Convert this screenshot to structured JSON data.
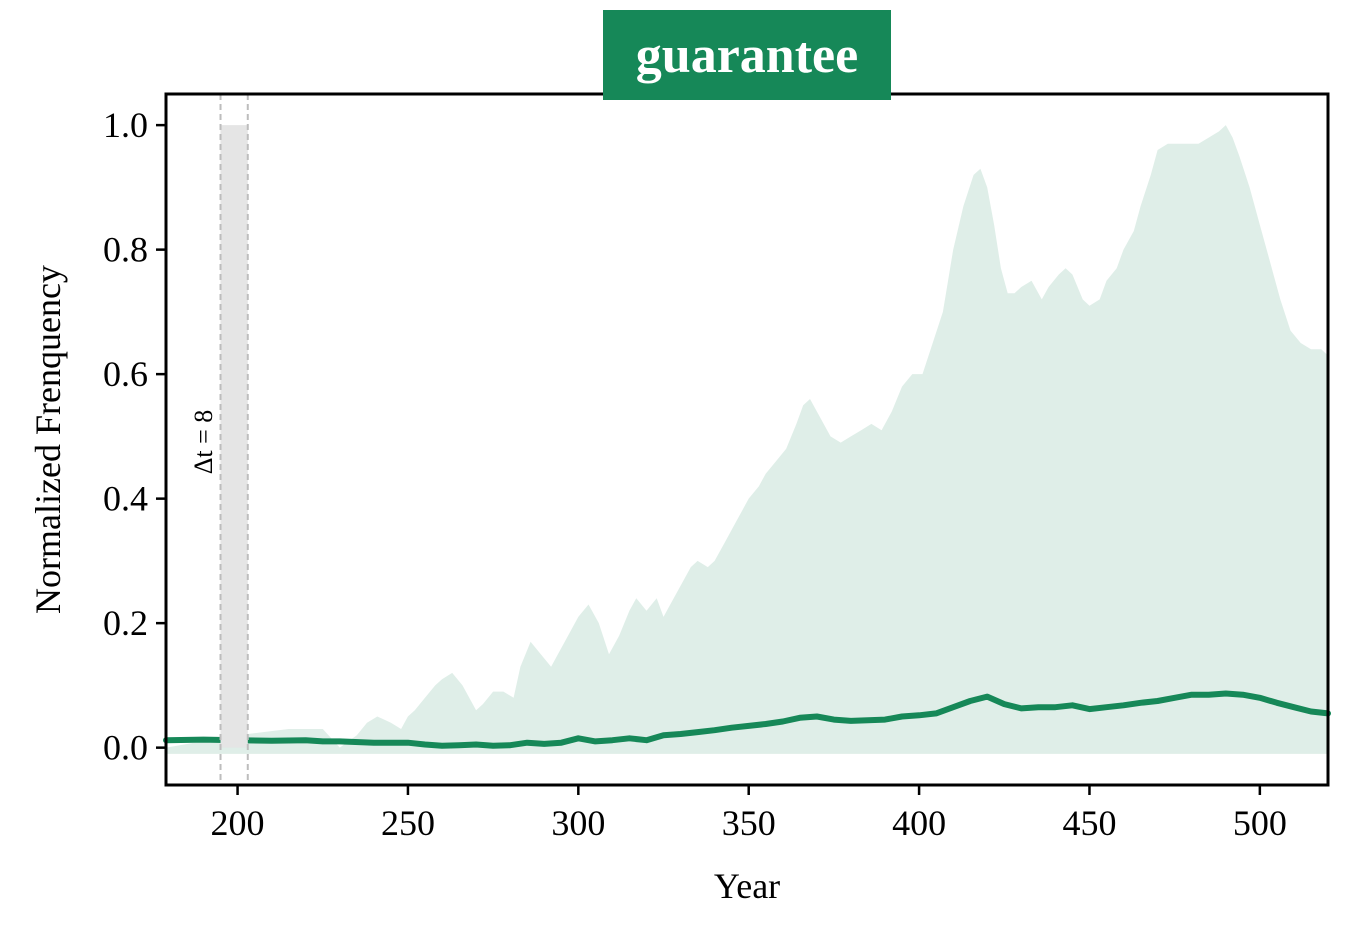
{
  "colors": {
    "accent": "#168858",
    "band_fill": "#dfeee8",
    "window_fill": "#e5e5e5",
    "window_line": "#bdbdbd"
  },
  "chart_data": {
    "type": "area",
    "title": "guarantee",
    "xlabel": "Year",
    "ylabel": "Normalized Frenquency",
    "xlim": [
      179,
      520
    ],
    "ylim": [
      -0.06,
      1.05
    ],
    "xticks": [
      200,
      250,
      300,
      350,
      400,
      450,
      500
    ],
    "yticks": [
      0.0,
      0.2,
      0.4,
      0.6,
      0.8,
      1.0
    ],
    "grid": false,
    "legend": "none",
    "window": {
      "start": 195,
      "end": 203,
      "height": 1.0,
      "label": "Δt = 8"
    },
    "series": [
      {
        "role": "band",
        "lower": -0.01,
        "x": [
          179,
          200,
          215,
          220,
          225,
          230,
          235,
          238,
          241,
          245,
          248,
          250,
          252,
          255,
          258,
          260,
          263,
          266,
          270,
          272,
          275,
          278,
          281,
          283,
          286,
          289,
          292,
          294,
          297,
          300,
          303,
          306,
          309,
          312,
          315,
          317,
          320,
          323,
          325,
          328,
          330,
          333,
          335,
          338,
          340,
          343,
          346,
          348,
          350,
          353,
          355,
          358,
          361,
          364,
          366,
          368,
          371,
          374,
          377,
          380,
          383,
          386,
          389,
          392,
          395,
          398,
          401,
          404,
          407,
          410,
          413,
          416,
          418,
          420,
          422,
          424,
          426,
          428,
          430,
          433,
          436,
          438,
          441,
          443,
          445,
          448,
          450,
          453,
          455,
          458,
          460,
          463,
          465,
          468,
          470,
          473,
          476,
          479,
          482,
          485,
          488,
          490,
          492,
          494,
          497,
          500,
          503,
          506,
          509,
          512,
          515,
          518,
          520
        ],
        "upper": [
          0.0,
          0.02,
          0.03,
          0.03,
          0.03,
          0.0,
          0.02,
          0.04,
          0.05,
          0.04,
          0.03,
          0.05,
          0.06,
          0.08,
          0.1,
          0.11,
          0.12,
          0.1,
          0.06,
          0.07,
          0.09,
          0.09,
          0.08,
          0.13,
          0.17,
          0.15,
          0.13,
          0.15,
          0.18,
          0.21,
          0.23,
          0.2,
          0.15,
          0.18,
          0.22,
          0.24,
          0.22,
          0.24,
          0.21,
          0.24,
          0.26,
          0.29,
          0.3,
          0.29,
          0.3,
          0.33,
          0.36,
          0.38,
          0.4,
          0.42,
          0.44,
          0.46,
          0.48,
          0.52,
          0.55,
          0.56,
          0.53,
          0.5,
          0.49,
          0.5,
          0.51,
          0.52,
          0.51,
          0.54,
          0.58,
          0.6,
          0.6,
          0.65,
          0.7,
          0.8,
          0.87,
          0.92,
          0.93,
          0.9,
          0.84,
          0.77,
          0.73,
          0.73,
          0.74,
          0.75,
          0.72,
          0.74,
          0.76,
          0.77,
          0.76,
          0.72,
          0.71,
          0.72,
          0.75,
          0.77,
          0.8,
          0.83,
          0.87,
          0.92,
          0.96,
          0.97,
          0.97,
          0.97,
          0.97,
          0.98,
          0.99,
          1.0,
          0.98,
          0.95,
          0.9,
          0.84,
          0.78,
          0.72,
          0.67,
          0.65,
          0.64,
          0.64,
          0.63
        ]
      },
      {
        "role": "line",
        "x": [
          179,
          190,
          200,
          210,
          220,
          225,
          230,
          240,
          250,
          255,
          260,
          265,
          270,
          275,
          280,
          285,
          290,
          295,
          300,
          305,
          310,
          315,
          320,
          325,
          330,
          335,
          340,
          345,
          350,
          355,
          360,
          365,
          370,
          375,
          380,
          385,
          390,
          395,
          400,
          405,
          410,
          415,
          420,
          425,
          430,
          435,
          440,
          445,
          450,
          455,
          460,
          465,
          470,
          475,
          480,
          485,
          490,
          495,
          500,
          505,
          510,
          515,
          520
        ],
        "y": [
          0.012,
          0.013,
          0.012,
          0.011,
          0.012,
          0.01,
          0.01,
          0.008,
          0.008,
          0.005,
          0.003,
          0.004,
          0.005,
          0.003,
          0.004,
          0.008,
          0.006,
          0.008,
          0.015,
          0.01,
          0.012,
          0.015,
          0.012,
          0.02,
          0.022,
          0.025,
          0.028,
          0.032,
          0.035,
          0.038,
          0.042,
          0.048,
          0.05,
          0.045,
          0.043,
          0.044,
          0.045,
          0.05,
          0.052,
          0.055,
          0.065,
          0.075,
          0.082,
          0.07,
          0.063,
          0.065,
          0.065,
          0.068,
          0.062,
          0.065,
          0.068,
          0.072,
          0.075,
          0.08,
          0.085,
          0.085,
          0.087,
          0.085,
          0.08,
          0.072,
          0.065,
          0.058,
          0.055
        ]
      }
    ]
  }
}
